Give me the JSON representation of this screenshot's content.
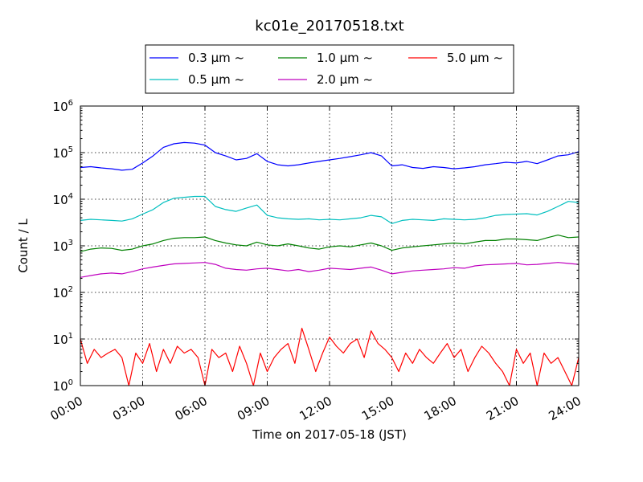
{
  "chart_data": {
    "type": "line",
    "title": "kc01e_20170518.txt",
    "xlabel": "Time on 2017-05-18 (JST)",
    "ylabel": "Count / L",
    "yscale": "log",
    "ylim": [
      1,
      1000000
    ],
    "xlim": [
      "00:00",
      "24:00"
    ],
    "grid": true,
    "legend_position": "top-center",
    "x_ticks": [
      "00:00",
      "03:00",
      "06:00",
      "09:00",
      "12:00",
      "15:00",
      "18:00",
      "21:00",
      "24:00"
    ],
    "y_ticks": [
      {
        "base": "10",
        "exp": "0",
        "value": 1
      },
      {
        "base": "10",
        "exp": "1",
        "value": 10
      },
      {
        "base": "10",
        "exp": "2",
        "value": 100
      },
      {
        "base": "10",
        "exp": "3",
        "value": 1000
      },
      {
        "base": "10",
        "exp": "4",
        "value": 10000
      },
      {
        "base": "10",
        "exp": "5",
        "value": 100000
      },
      {
        "base": "10",
        "exp": "6",
        "value": 1000000
      }
    ],
    "series": [
      {
        "name": "0.3 μm ~",
        "legend_text": "0.3 μm ~",
        "color": "#0000ff",
        "legend_order": 0,
        "x": [
          "00:00",
          "00:30",
          "01:00",
          "01:30",
          "02:00",
          "02:30",
          "03:00",
          "03:30",
          "04:00",
          "04:30",
          "05:00",
          "05:30",
          "06:00",
          "06:30",
          "07:00",
          "07:30",
          "08:00",
          "08:30",
          "09:00",
          "09:30",
          "10:00",
          "10:30",
          "11:00",
          "11:30",
          "12:00",
          "12:30",
          "13:00",
          "13:30",
          "14:00",
          "14:30",
          "15:00",
          "15:30",
          "16:00",
          "16:30",
          "17:00",
          "17:30",
          "18:00",
          "18:30",
          "19:00",
          "19:30",
          "20:00",
          "20:30",
          "21:00",
          "21:30",
          "22:00",
          "22:30",
          "23:00",
          "23:30",
          "24:00"
        ],
        "y": [
          48000,
          50000,
          47000,
          45000,
          42000,
          44000,
          60000,
          85000,
          130000,
          155000,
          165000,
          160000,
          145000,
          100000,
          85000,
          70000,
          75000,
          95000,
          65000,
          55000,
          52000,
          55000,
          60000,
          65000,
          70000,
          75000,
          82000,
          90000,
          100000,
          85000,
          52000,
          55000,
          48000,
          46000,
          50000,
          48000,
          45000,
          47000,
          50000,
          55000,
          58000,
          62000,
          60000,
          65000,
          58000,
          70000,
          85000,
          90000,
          105000
        ]
      },
      {
        "name": "0.5 μm ~",
        "legend_text": "0.5 μm ~",
        "color": "#00bfbf",
        "legend_order": 1,
        "x": [
          "00:00",
          "00:30",
          "01:00",
          "01:30",
          "02:00",
          "02:30",
          "03:00",
          "03:30",
          "04:00",
          "04:30",
          "05:00",
          "05:30",
          "06:00",
          "06:30",
          "07:00",
          "07:30",
          "08:00",
          "08:30",
          "09:00",
          "09:30",
          "10:00",
          "10:30",
          "11:00",
          "11:30",
          "12:00",
          "12:30",
          "13:00",
          "13:30",
          "14:00",
          "14:30",
          "15:00",
          "15:30",
          "16:00",
          "16:30",
          "17:00",
          "17:30",
          "18:00",
          "18:30",
          "19:00",
          "19:30",
          "20:00",
          "20:30",
          "21:00",
          "21:30",
          "22:00",
          "22:30",
          "23:00",
          "23:30",
          "24:00"
        ],
        "y": [
          3500,
          3700,
          3600,
          3500,
          3400,
          3800,
          4800,
          6000,
          8500,
          10500,
          11000,
          11500,
          11500,
          7000,
          6000,
          5500,
          6500,
          7500,
          4500,
          4000,
          3800,
          3700,
          3800,
          3600,
          3700,
          3600,
          3800,
          4000,
          4500,
          4200,
          3000,
          3500,
          3700,
          3600,
          3500,
          3800,
          3700,
          3600,
          3700,
          4000,
          4500,
          4700,
          4800,
          4900,
          4600,
          5500,
          7000,
          9000,
          8500
        ]
      },
      {
        "name": "1.0 μm ~",
        "legend_text": "1.0 μm ~",
        "color": "#008000",
        "legend_order": 2,
        "x": [
          "00:00",
          "00:30",
          "01:00",
          "01:30",
          "02:00",
          "02:30",
          "03:00",
          "03:30",
          "04:00",
          "04:30",
          "05:00",
          "05:30",
          "06:00",
          "06:30",
          "07:00",
          "07:30",
          "08:00",
          "08:30",
          "09:00",
          "09:30",
          "10:00",
          "10:30",
          "11:00",
          "11:30",
          "12:00",
          "12:30",
          "13:00",
          "13:30",
          "14:00",
          "14:30",
          "15:00",
          "15:30",
          "16:00",
          "16:30",
          "17:00",
          "17:30",
          "18:00",
          "18:30",
          "19:00",
          "19:30",
          "20:00",
          "20:30",
          "21:00",
          "21:30",
          "22:00",
          "22:30",
          "23:00",
          "23:30",
          "24:00"
        ],
        "y": [
          750,
          850,
          900,
          880,
          800,
          850,
          1000,
          1100,
          1300,
          1450,
          1500,
          1500,
          1550,
          1300,
          1150,
          1050,
          1000,
          1200,
          1050,
          1000,
          1100,
          1000,
          900,
          850,
          950,
          1000,
          950,
          1050,
          1150,
          1000,
          800,
          900,
          950,
          1000,
          1050,
          1100,
          1150,
          1100,
          1200,
          1300,
          1300,
          1400,
          1400,
          1350,
          1300,
          1500,
          1700,
          1500,
          1550
        ]
      },
      {
        "name": "2.0 μm ~",
        "legend_text": "2.0 μm ~",
        "color": "#bf00bf",
        "legend_order": 3,
        "x": [
          "00:00",
          "00:30",
          "01:00",
          "01:30",
          "02:00",
          "02:30",
          "03:00",
          "03:30",
          "04:00",
          "04:30",
          "05:00",
          "05:30",
          "06:00",
          "06:30",
          "07:00",
          "07:30",
          "08:00",
          "08:30",
          "09:00",
          "09:30",
          "10:00",
          "10:30",
          "11:00",
          "11:30",
          "12:00",
          "12:30",
          "13:00",
          "13:30",
          "14:00",
          "14:30",
          "15:00",
          "15:30",
          "16:00",
          "16:30",
          "17:00",
          "17:30",
          "18:00",
          "18:30",
          "19:00",
          "19:30",
          "20:00",
          "20:30",
          "21:00",
          "21:30",
          "22:00",
          "22:30",
          "23:00",
          "23:30",
          "24:00"
        ],
        "y": [
          210,
          230,
          250,
          260,
          250,
          280,
          320,
          350,
          380,
          410,
          420,
          430,
          440,
          400,
          330,
          310,
          300,
          320,
          330,
          310,
          290,
          310,
          280,
          300,
          330,
          320,
          310,
          330,
          350,
          300,
          250,
          270,
          290,
          300,
          310,
          320,
          340,
          330,
          370,
          390,
          400,
          410,
          420,
          390,
          400,
          420,
          440,
          420,
          400
        ]
      },
      {
        "name": "5.0 μm ~",
        "legend_text": "5.0 μm ~",
        "color": "#ff0000",
        "legend_order": 4,
        "x": [
          "00:00",
          "00:20",
          "00:40",
          "01:00",
          "01:20",
          "01:40",
          "02:00",
          "02:20",
          "02:40",
          "03:00",
          "03:20",
          "03:40",
          "04:00",
          "04:20",
          "04:40",
          "05:00",
          "05:20",
          "05:40",
          "06:00",
          "06:20",
          "06:40",
          "07:00",
          "07:20",
          "07:40",
          "08:00",
          "08:20",
          "08:40",
          "09:00",
          "09:20",
          "09:40",
          "10:00",
          "10:20",
          "10:40",
          "11:00",
          "11:20",
          "11:40",
          "12:00",
          "12:20",
          "12:40",
          "13:00",
          "13:20",
          "13:40",
          "14:00",
          "14:20",
          "14:40",
          "15:00",
          "15:20",
          "15:40",
          "16:00",
          "16:20",
          "16:40",
          "17:00",
          "17:20",
          "17:40",
          "18:00",
          "18:20",
          "18:40",
          "19:00",
          "19:20",
          "19:40",
          "20:00",
          "20:20",
          "20:40",
          "21:00",
          "21:20",
          "21:40",
          "22:00",
          "22:20",
          "22:40",
          "23:00",
          "23:20",
          "23:40",
          "24:00"
        ],
        "y": [
          10,
          3,
          6,
          4,
          5,
          6,
          4,
          1,
          5,
          3,
          8,
          2,
          6,
          3,
          7,
          5,
          6,
          4,
          1,
          6,
          4,
          5,
          2,
          7,
          3,
          1,
          5,
          2,
          4,
          6,
          8,
          3,
          17,
          6,
          2,
          5,
          11,
          7,
          5,
          8,
          10,
          4,
          15,
          8,
          6,
          4,
          2,
          5,
          3,
          6,
          4,
          3,
          5,
          8,
          4,
          6,
          2,
          4,
          7,
          5,
          3,
          2,
          1,
          6,
          3,
          5,
          1,
          5,
          3,
          4,
          2,
          1,
          4
        ]
      }
    ]
  }
}
